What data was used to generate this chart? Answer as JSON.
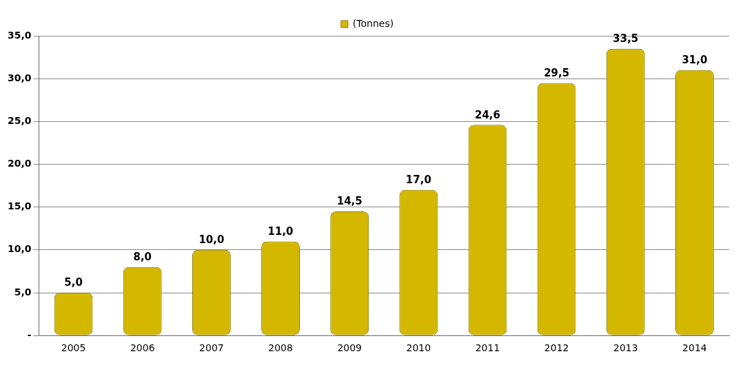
{
  "chart_data": {
    "type": "bar",
    "categories": [
      "2005",
      "2006",
      "2007",
      "2008",
      "2009",
      "2010",
      "2011",
      "2012",
      "2013",
      "2014"
    ],
    "series": [
      {
        "name": "(Tonnes)",
        "color": "#d4b800",
        "values": [
          5.0,
          8.0,
          10.0,
          11.0,
          14.5,
          17.0,
          24.6,
          29.5,
          33.5,
          31.0
        ],
        "value_labels": [
          "5,0",
          "8,0",
          "10,0",
          "11,0",
          "14,5",
          "17,0",
          "24,6",
          "29,5",
          "33,5",
          "31,0"
        ]
      }
    ],
    "ylim": [
      0,
      35
    ],
    "yticks": [
      {
        "value": 0,
        "label": "-"
      },
      {
        "value": 5,
        "label": "5,0"
      },
      {
        "value": 10,
        "label": "10,0"
      },
      {
        "value": 15,
        "label": "15,0"
      },
      {
        "value": 20,
        "label": "20,0"
      },
      {
        "value": 25,
        "label": "25,0"
      },
      {
        "value": 30,
        "label": "30,0"
      },
      {
        "value": 35,
        "label": "35,0"
      }
    ],
    "grid": "y",
    "legend": "top"
  }
}
